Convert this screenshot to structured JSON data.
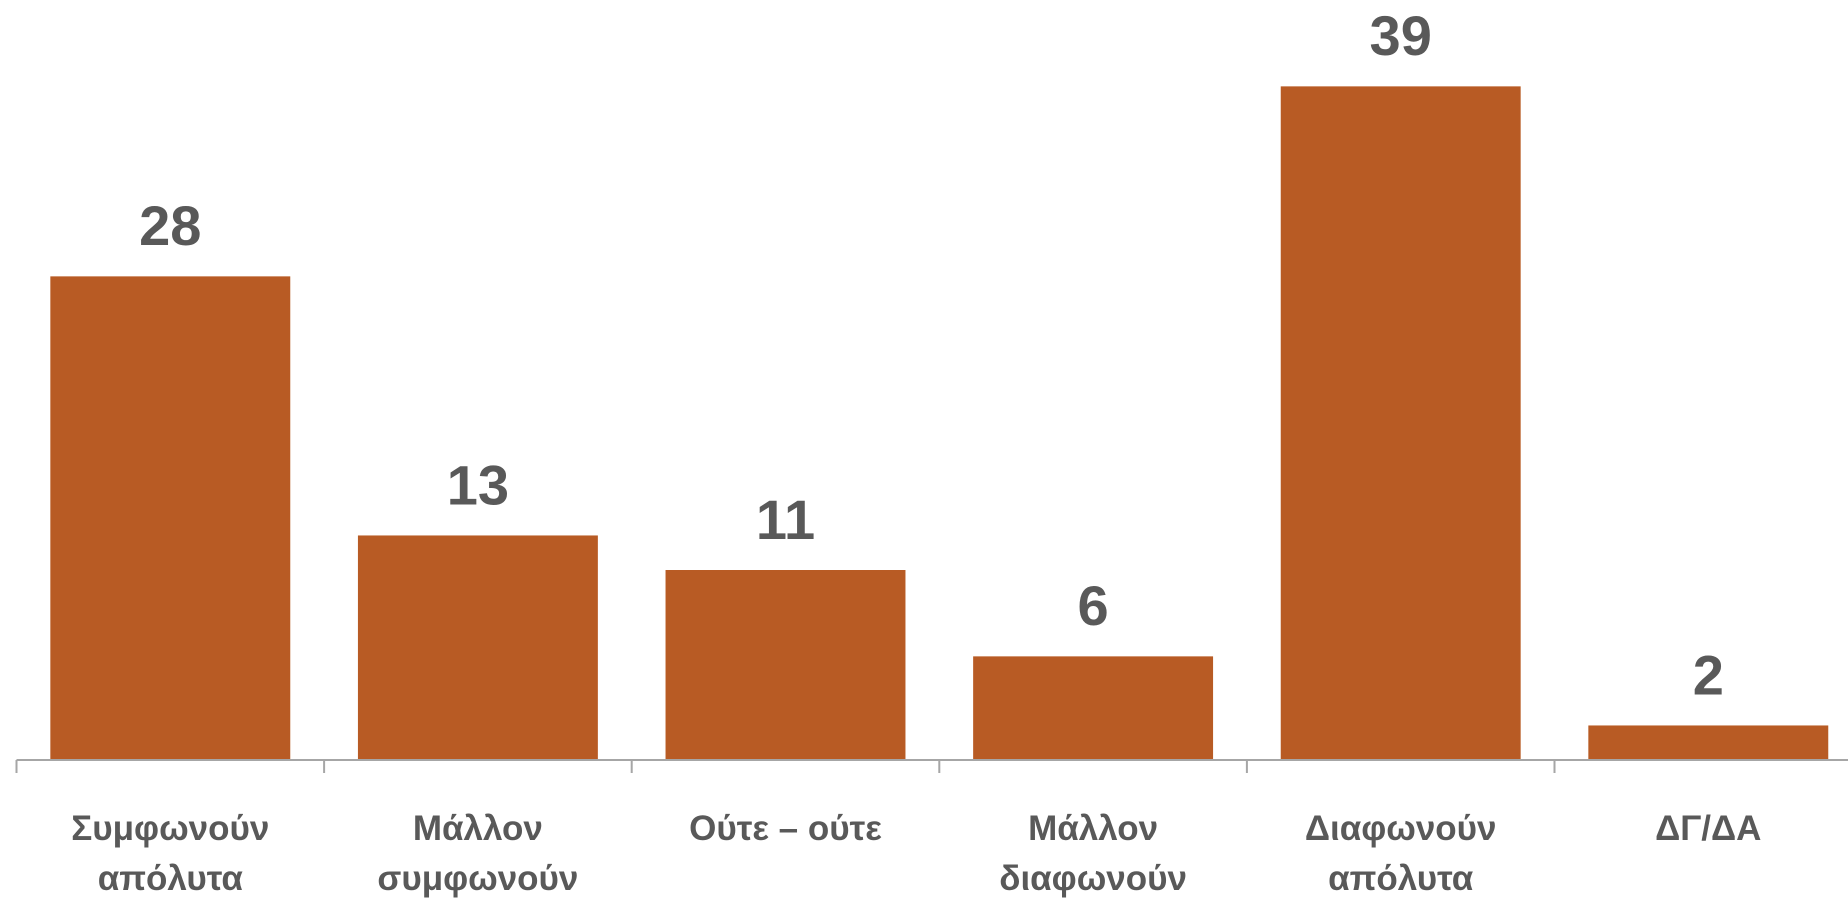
{
  "chart_data": {
    "type": "bar",
    "categories": [
      "Συμφωνούν απόλυτα",
      "Μάλλον συμφωνούν",
      "Ούτε – ούτε",
      "Μάλλον διαφωνούν",
      "Διαφωνούν απόλυτα",
      "ΔΓ/ΔΑ"
    ],
    "values": [
      28,
      13,
      11,
      6,
      39,
      2
    ],
    "color": "#b85b24",
    "ylim": [
      0,
      44
    ]
  }
}
